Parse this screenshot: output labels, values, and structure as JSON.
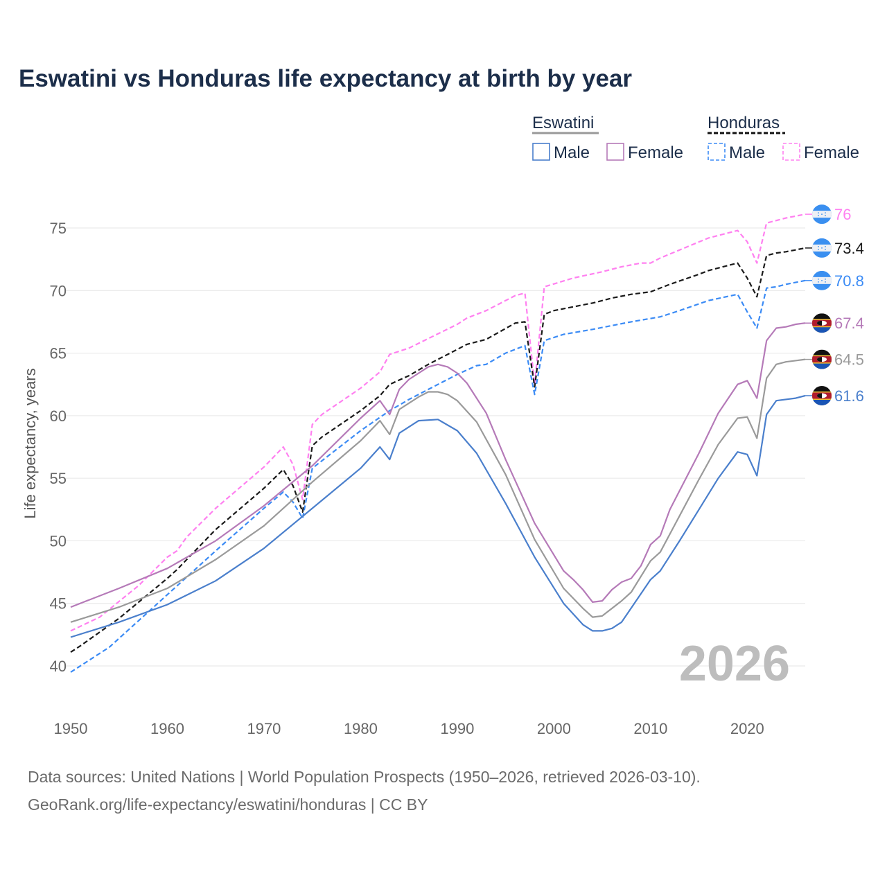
{
  "title": "Eswatini vs Honduras life expectancy at birth by year",
  "footer": {
    "line1": "Data sources: United Nations | World Population Prospects (1950–2026, retrieved 2026-03-10).",
    "line2": "GeoRank.org/life-expectancy/eswatini/honduras | CC BY"
  },
  "chart_data": {
    "type": "line",
    "title": "Eswatini vs Honduras life expectancy at birth by year",
    "xlabel": "",
    "ylabel": "Life expectancy, years",
    "xlim": [
      1950,
      2026
    ],
    "ylim": [
      38.5,
      77
    ],
    "xticks": [
      1950,
      1960,
      1970,
      1980,
      1990,
      2000,
      2010,
      2020
    ],
    "yticks": [
      40,
      45,
      50,
      55,
      60,
      65,
      70,
      75
    ],
    "grid": true,
    "year_watermark": "2026",
    "legend": {
      "placement": "top-right",
      "groups": [
        {
          "name": "Eswatini",
          "items": [
            "Male",
            "Female"
          ]
        },
        {
          "name": "Honduras",
          "items": [
            "Male",
            "Female"
          ]
        }
      ]
    },
    "series": [
      {
        "name": "Honduras Female",
        "country": "Honduras",
        "color": "#ff80f0",
        "dashed": true,
        "end_label": "76",
        "points": [
          [
            1950,
            42.8
          ],
          [
            1953,
            43.9
          ],
          [
            1957,
            46.4
          ],
          [
            1960,
            48.7
          ],
          [
            1961,
            49.2
          ],
          [
            1962,
            50.3
          ],
          [
            1965,
            52.6
          ],
          [
            1970,
            55.9
          ],
          [
            1972,
            57.5
          ],
          [
            1973,
            56.1
          ],
          [
            1974,
            53.3
          ],
          [
            1975,
            59.3
          ],
          [
            1976,
            60.1
          ],
          [
            1980,
            62.2
          ],
          [
            1982,
            63.5
          ],
          [
            1983,
            64.9
          ],
          [
            1985,
            65.4
          ],
          [
            1990,
            67.3
          ],
          [
            1991,
            67.8
          ],
          [
            1993,
            68.4
          ],
          [
            1996,
            69.6
          ],
          [
            1997,
            69.8
          ],
          [
            1998,
            62.5
          ],
          [
            1999,
            70.3
          ],
          [
            2002,
            71.0
          ],
          [
            2005,
            71.5
          ],
          [
            2007,
            71.9
          ],
          [
            2009,
            72.2
          ],
          [
            2010,
            72.2
          ],
          [
            2011,
            72.6
          ],
          [
            2016,
            74.2
          ],
          [
            2019,
            74.8
          ],
          [
            2020,
            73.9
          ],
          [
            2021,
            72.2
          ],
          [
            2022,
            75.4
          ],
          [
            2024,
            75.8
          ],
          [
            2026,
            76.1
          ]
        ]
      },
      {
        "name": "Honduras",
        "country": "Honduras",
        "color": "#1a1a1a",
        "dashed": true,
        "end_label": "73.4",
        "points": [
          [
            1950,
            41.1
          ],
          [
            1951,
            41.6
          ],
          [
            1955,
            43.8
          ],
          [
            1960,
            47.0
          ],
          [
            1961,
            47.7
          ],
          [
            1965,
            50.9
          ],
          [
            1970,
            54.2
          ],
          [
            1972,
            55.7
          ],
          [
            1973,
            54.4
          ],
          [
            1974,
            52.3
          ],
          [
            1975,
            57.6
          ],
          [
            1976,
            58.3
          ],
          [
            1980,
            60.4
          ],
          [
            1982,
            61.6
          ],
          [
            1983,
            62.5
          ],
          [
            1985,
            63.2
          ],
          [
            1987,
            64.1
          ],
          [
            1990,
            65.3
          ],
          [
            1991,
            65.7
          ],
          [
            1993,
            66.1
          ],
          [
            1996,
            67.4
          ],
          [
            1997,
            67.5
          ],
          [
            1998,
            62.3
          ],
          [
            1999,
            68.1
          ],
          [
            2000,
            68.4
          ],
          [
            2004,
            69.0
          ],
          [
            2006,
            69.4
          ],
          [
            2008,
            69.7
          ],
          [
            2010,
            69.9
          ],
          [
            2012,
            70.5
          ],
          [
            2015,
            71.3
          ],
          [
            2016,
            71.6
          ],
          [
            2019,
            72.2
          ],
          [
            2020,
            71.0
          ],
          [
            2021,
            69.5
          ],
          [
            2022,
            72.8
          ],
          [
            2023,
            73.0
          ],
          [
            2024,
            73.1
          ],
          [
            2026,
            73.4
          ]
        ]
      },
      {
        "name": "Honduras Male",
        "country": "Honduras",
        "color": "#3b8bf5",
        "dashed": true,
        "end_label": "70.8",
        "points": [
          [
            1950,
            39.5
          ],
          [
            1954,
            41.5
          ],
          [
            1960,
            45.7
          ],
          [
            1965,
            49.2
          ],
          [
            1970,
            52.6
          ],
          [
            1972,
            53.9
          ],
          [
            1973,
            53.1
          ],
          [
            1974,
            51.8
          ],
          [
            1975,
            55.8
          ],
          [
            1980,
            58.8
          ],
          [
            1983,
            60.4
          ],
          [
            1985,
            61.3
          ],
          [
            1987,
            62.1
          ],
          [
            1990,
            63.3
          ],
          [
            1992,
            64.0
          ],
          [
            1993,
            64.1
          ],
          [
            1995,
            65.0
          ],
          [
            1997,
            65.6
          ],
          [
            1998,
            61.7
          ],
          [
            1999,
            66.0
          ],
          [
            2001,
            66.5
          ],
          [
            2004,
            66.9
          ],
          [
            2006,
            67.2
          ],
          [
            2008,
            67.5
          ],
          [
            2011,
            67.9
          ],
          [
            2013,
            68.4
          ],
          [
            2016,
            69.2
          ],
          [
            2019,
            69.7
          ],
          [
            2020,
            68.3
          ],
          [
            2021,
            67.0
          ],
          [
            2022,
            70.2
          ],
          [
            2023,
            70.3
          ],
          [
            2024,
            70.5
          ],
          [
            2026,
            70.8
          ]
        ]
      },
      {
        "name": "Eswatini Female",
        "country": "Eswatini",
        "color": "#b57ab8",
        "dashed": false,
        "end_label": "67.4",
        "points": [
          [
            1950,
            44.7
          ],
          [
            1955,
            46.2
          ],
          [
            1960,
            47.8
          ],
          [
            1965,
            50.0
          ],
          [
            1970,
            52.8
          ],
          [
            1975,
            56.0
          ],
          [
            1980,
            59.8
          ],
          [
            1982,
            61.2
          ],
          [
            1983,
            60.1
          ],
          [
            1984,
            62.1
          ],
          [
            1985,
            62.9
          ],
          [
            1987,
            63.9
          ],
          [
            1988,
            64.1
          ],
          [
            1989,
            63.9
          ],
          [
            1990,
            63.4
          ],
          [
            1991,
            62.6
          ],
          [
            1993,
            60.2
          ],
          [
            1995,
            56.5
          ],
          [
            1996,
            54.8
          ],
          [
            1998,
            51.4
          ],
          [
            2001,
            47.6
          ],
          [
            2002,
            46.9
          ],
          [
            2003,
            46.1
          ],
          [
            2004,
            45.1
          ],
          [
            2005,
            45.2
          ],
          [
            2006,
            46.1
          ],
          [
            2007,
            46.7
          ],
          [
            2008,
            47.0
          ],
          [
            2009,
            48.0
          ],
          [
            2010,
            49.7
          ],
          [
            2011,
            50.4
          ],
          [
            2012,
            52.5
          ],
          [
            2015,
            57.0
          ],
          [
            2017,
            60.2
          ],
          [
            2019,
            62.5
          ],
          [
            2020,
            62.8
          ],
          [
            2021,
            61.4
          ],
          [
            2022,
            66.0
          ],
          [
            2023,
            67.0
          ],
          [
            2024,
            67.1
          ],
          [
            2025,
            67.3
          ],
          [
            2026,
            67.4
          ]
        ]
      },
      {
        "name": "Eswatini",
        "country": "Eswatini",
        "color": "#9a9a9a",
        "dashed": false,
        "end_label": "64.5",
        "points": [
          [
            1950,
            43.5
          ],
          [
            1955,
            44.7
          ],
          [
            1960,
            46.2
          ],
          [
            1965,
            48.5
          ],
          [
            1970,
            51.2
          ],
          [
            1975,
            54.7
          ],
          [
            1980,
            58.0
          ],
          [
            1982,
            59.6
          ],
          [
            1983,
            58.5
          ],
          [
            1984,
            60.5
          ],
          [
            1986,
            61.5
          ],
          [
            1987,
            61.9
          ],
          [
            1988,
            61.9
          ],
          [
            1989,
            61.7
          ],
          [
            1990,
            61.2
          ],
          [
            1992,
            59.5
          ],
          [
            1995,
            55.3
          ],
          [
            1998,
            50.1
          ],
          [
            2001,
            46.2
          ],
          [
            2003,
            44.6
          ],
          [
            2004,
            43.9
          ],
          [
            2005,
            44.0
          ],
          [
            2007,
            45.2
          ],
          [
            2008,
            45.9
          ],
          [
            2010,
            48.4
          ],
          [
            2011,
            49.1
          ],
          [
            2013,
            52.0
          ],
          [
            2015,
            54.9
          ],
          [
            2017,
            57.7
          ],
          [
            2019,
            59.8
          ],
          [
            2020,
            59.9
          ],
          [
            2021,
            58.2
          ],
          [
            2022,
            63.0
          ],
          [
            2023,
            64.1
          ],
          [
            2024,
            64.3
          ],
          [
            2026,
            64.5
          ]
        ]
      },
      {
        "name": "Eswatini Male",
        "country": "Eswatini",
        "color": "#4a7fcc",
        "dashed": false,
        "end_label": "61.6",
        "points": [
          [
            1950,
            42.3
          ],
          [
            1955,
            43.5
          ],
          [
            1960,
            44.9
          ],
          [
            1965,
            46.8
          ],
          [
            1970,
            49.4
          ],
          [
            1975,
            52.6
          ],
          [
            1980,
            55.8
          ],
          [
            1982,
            57.5
          ],
          [
            1983,
            56.5
          ],
          [
            1984,
            58.6
          ],
          [
            1986,
            59.6
          ],
          [
            1988,
            59.7
          ],
          [
            1990,
            58.8
          ],
          [
            1992,
            57.0
          ],
          [
            1995,
            53.0
          ],
          [
            1998,
            48.7
          ],
          [
            2001,
            45.0
          ],
          [
            2003,
            43.3
          ],
          [
            2004,
            42.8
          ],
          [
            2005,
            42.8
          ],
          [
            2006,
            43.0
          ],
          [
            2007,
            43.5
          ],
          [
            2010,
            46.9
          ],
          [
            2011,
            47.6
          ],
          [
            2013,
            50.0
          ],
          [
            2015,
            52.5
          ],
          [
            2017,
            55.0
          ],
          [
            2019,
            57.1
          ],
          [
            2020,
            56.9
          ],
          [
            2021,
            55.2
          ],
          [
            2022,
            60.1
          ],
          [
            2023,
            61.2
          ],
          [
            2025,
            61.4
          ],
          [
            2026,
            61.6
          ]
        ]
      }
    ]
  }
}
